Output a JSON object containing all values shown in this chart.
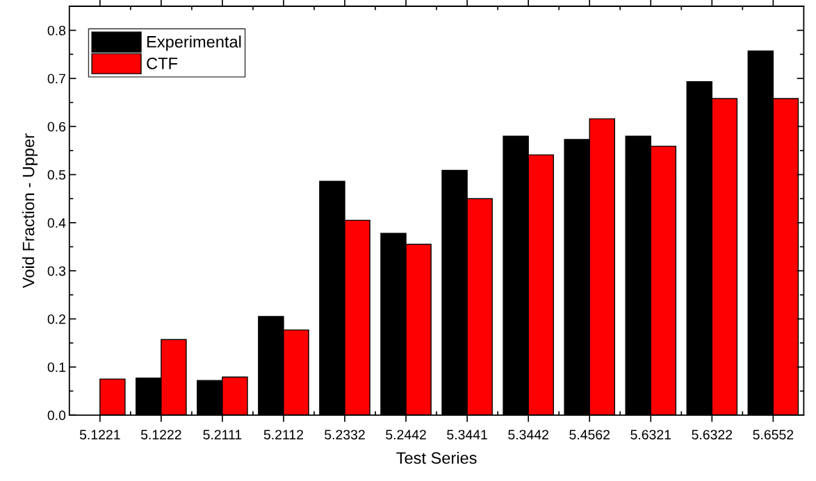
{
  "chart_data": {
    "type": "bar",
    "xlabel": "Test Series",
    "ylabel": "Void Fraction - Upper",
    "categories": [
      "5.1221",
      "5.1222",
      "5.2111",
      "5.2112",
      "5.2332",
      "5.2442",
      "5.3441",
      "5.3442",
      "5.4562",
      "5.6321",
      "5.6322",
      "5.6552"
    ],
    "series": [
      {
        "name": "Experimental",
        "color": "#000000",
        "values": [
          null,
          0.077,
          0.072,
          0.205,
          0.486,
          0.378,
          0.509,
          0.58,
          0.573,
          0.58,
          0.693,
          0.757
        ]
      },
      {
        "name": "CTF",
        "color": "#ff0000",
        "values": [
          0.075,
          0.157,
          0.079,
          0.177,
          0.405,
          0.355,
          0.45,
          0.541,
          0.616,
          0.559,
          0.658,
          0.658
        ]
      }
    ],
    "ylim": [
      0,
      0.85
    ],
    "yticks": [
      {
        "value": 0,
        "label": "0.0"
      },
      0.1,
      0.2,
      0.3,
      0.4,
      0.5,
      0.6,
      0.7,
      0.8
    ],
    "legend": "top left",
    "grid": false
  }
}
